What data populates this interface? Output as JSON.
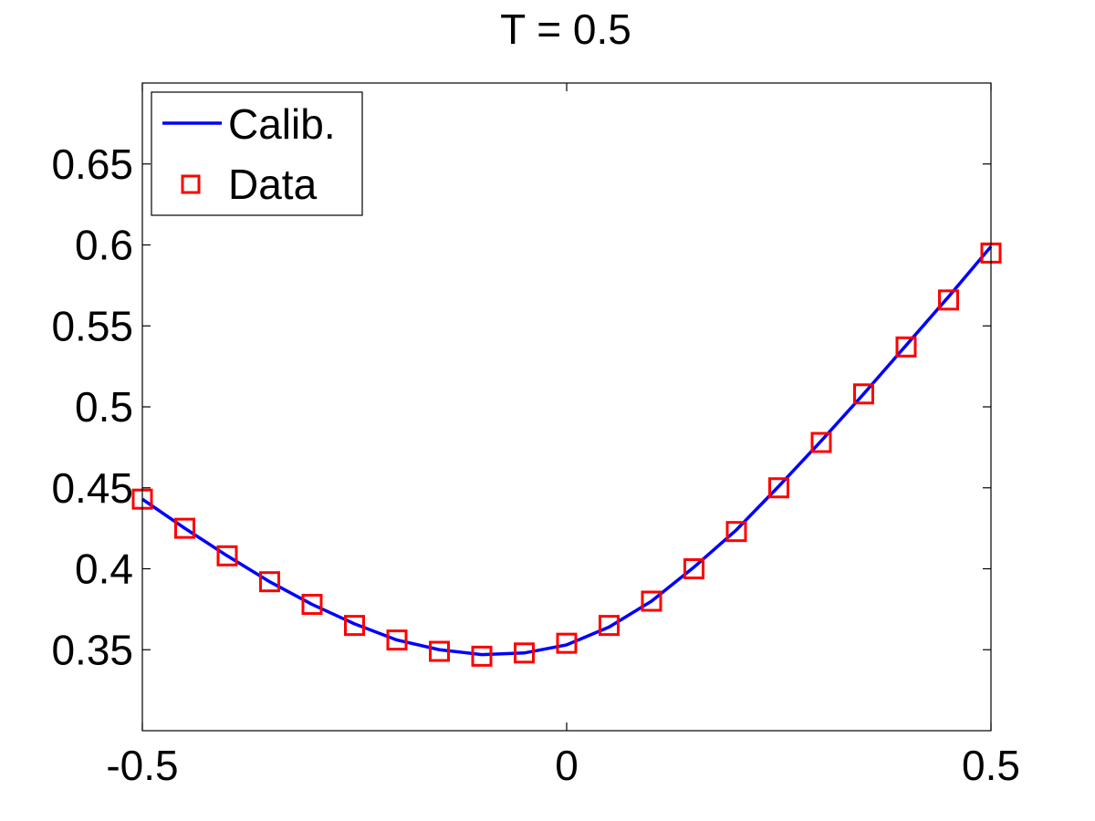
{
  "chart_data": {
    "type": "line",
    "title": "T = 0.5",
    "xlabel": "",
    "ylabel": "",
    "xlim": [
      -0.5,
      0.5
    ],
    "ylim": [
      0.3,
      0.7
    ],
    "x_ticks": [
      -0.5,
      0,
      0.5
    ],
    "x_tick_labels": [
      "-0.5",
      "0",
      "0.5"
    ],
    "y_ticks": [
      0.35,
      0.4,
      0.45,
      0.5,
      0.55,
      0.6,
      0.65
    ],
    "y_tick_labels": [
      "0.35",
      "0.4",
      "0.45",
      "0.5",
      "0.55",
      "0.6",
      "0.65"
    ],
    "grid": false,
    "legend_position": "top-left",
    "series": [
      {
        "name": "Calib.",
        "style": "line",
        "color": "#0000ff",
        "x": [
          -0.5,
          -0.45,
          -0.4,
          -0.35,
          -0.3,
          -0.25,
          -0.2,
          -0.15,
          -0.1,
          -0.05,
          0,
          0.05,
          0.1,
          0.15,
          0.2,
          0.25,
          0.3,
          0.35,
          0.4,
          0.45,
          0.5
        ],
        "y": [
          0.443,
          0.425,
          0.408,
          0.392,
          0.378,
          0.366,
          0.356,
          0.35,
          0.347,
          0.348,
          0.353,
          0.364,
          0.38,
          0.401,
          0.424,
          0.451,
          0.479,
          0.508,
          0.538,
          0.568,
          0.599
        ]
      },
      {
        "name": "Data",
        "style": "markers",
        "marker": "square",
        "color": "#ff0000",
        "x": [
          -0.5,
          -0.45,
          -0.4,
          -0.35,
          -0.3,
          -0.25,
          -0.2,
          -0.15,
          -0.1,
          -0.05,
          0,
          0.05,
          0.1,
          0.15,
          0.2,
          0.25,
          0.3,
          0.35,
          0.4,
          0.45,
          0.5
        ],
        "y": [
          0.443,
          0.425,
          0.408,
          0.392,
          0.378,
          0.365,
          0.356,
          0.349,
          0.346,
          0.348,
          0.354,
          0.365,
          0.38,
          0.4,
          0.423,
          0.45,
          0.478,
          0.508,
          0.537,
          0.566,
          0.595
        ]
      }
    ]
  }
}
